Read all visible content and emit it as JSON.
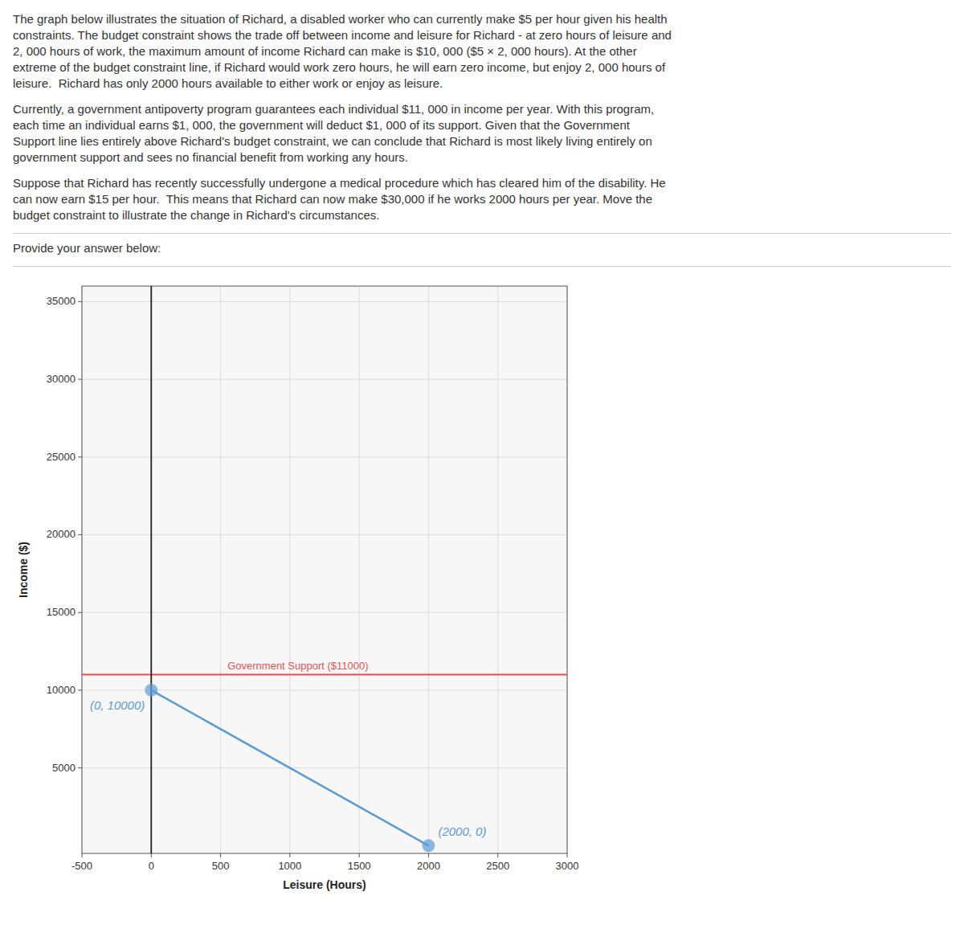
{
  "paragraphs": [
    "The graph below illustrates the situation of Richard, a disabled worker who can currently make $5 per hour given his health\nconstraints. The budget constraint shows the trade off between income and leisure for Richard - at zero hours of leisure and\n2, 000 hours of work, the maximum amount of income Richard can make is $10, 000 ($5 × 2, 000 hours). At the other\nextreme of the budget constraint line, if Richard would work zero hours, he will earn zero income, but enjoy 2, 000 hours of\nleisure.  Richard has only 2000 hours available to either work or enjoy as leisure.",
    "Currently, a government antipoverty program guarantees each individual $11, 000 in income per year. With this program,\neach time an individual earns $1, 000, the government will deduct $1, 000 of its support. Given that the Government\nSupport line lies entirely above Richard's budget constraint, we can conclude that Richard is most likely living entirely on\ngovernment support and sees no financial benefit from working any hours.",
    "Suppose that Richard has recently successfully undergone a medical procedure which has cleared him of the disability. He\ncan now earn $15 per hour.  This means that Richard can now make $30,000 if he works 2000 hours per year. Move the\nbudget constraint to illustrate the change in Richard's circumstances."
  ],
  "prompt": "Provide your answer below:",
  "chart_data": {
    "type": "line",
    "xlabel": "Leisure (Hours)",
    "ylabel": "Income ($)",
    "xlim": [
      -500,
      3000
    ],
    "ylim": [
      -500,
      36000
    ],
    "xticks": [
      -500,
      0,
      500,
      1000,
      1500,
      2000,
      2500,
      3000
    ],
    "yticks": [
      5000,
      10000,
      15000,
      20000,
      25000,
      30000,
      35000
    ],
    "grid": true,
    "series": [
      {
        "color": "#5b9bd5",
        "marker": "circle",
        "line_style": "solid",
        "x": [
          0,
          2000
        ],
        "values": [
          10000,
          0
        ]
      }
    ],
    "annotations": [
      {
        "text": "(0, 10000)",
        "x": 0,
        "y": 10000,
        "color": "#5b9bd5"
      },
      {
        "text": "(2000, 0)",
        "x": 2000,
        "y": 0,
        "color": "#5b9bd5"
      }
    ],
    "reference_lines": [
      {
        "axis": "y",
        "value": 11000,
        "color": "#e05252",
        "label": "Government Support ($11000)"
      },
      {
        "axis": "x",
        "value": 0,
        "color": "#222222"
      }
    ]
  }
}
